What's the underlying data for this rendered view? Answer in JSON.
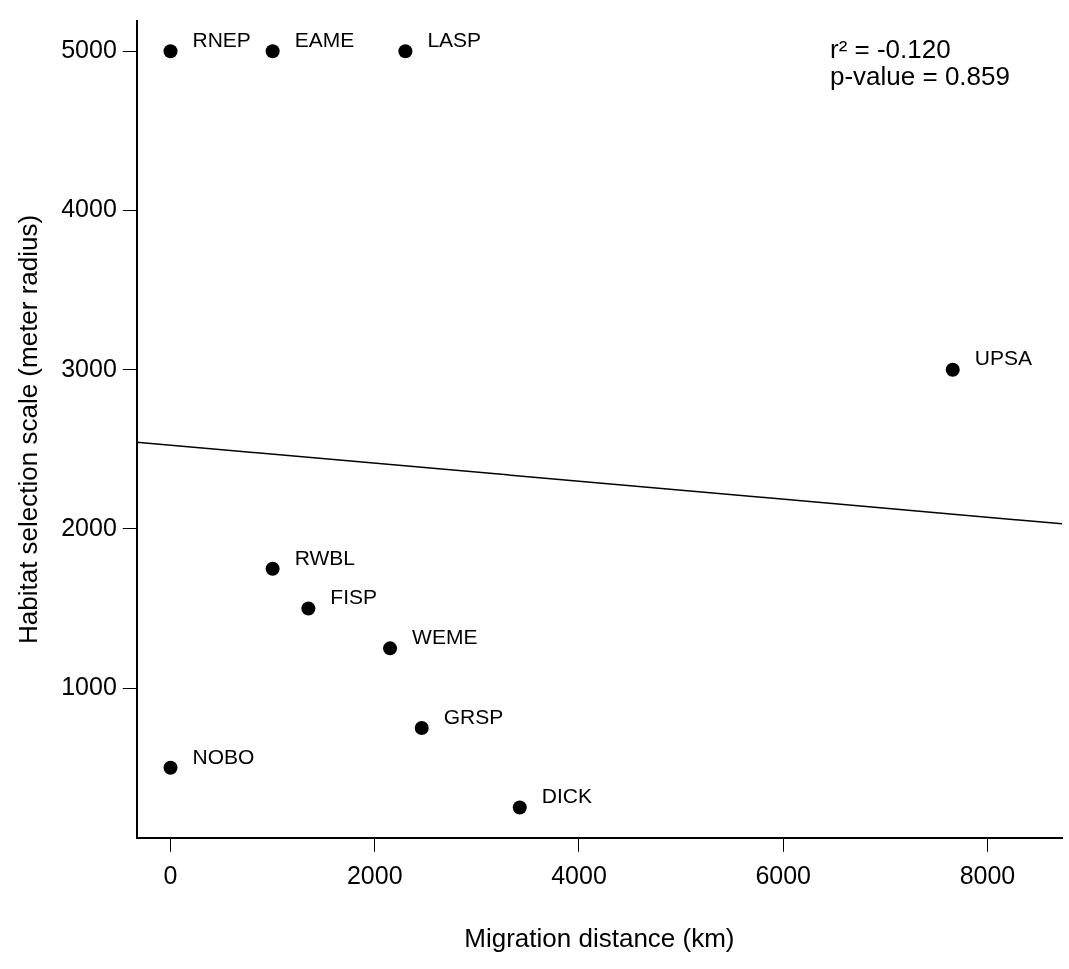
{
  "chart_data": {
    "type": "scatter",
    "xlabel": "Migration distance (km)",
    "ylabel": "Habitat selection scale (meter radius)",
    "xlim": [
      -330,
      8730
    ],
    "ylim": [
      60,
      5190
    ],
    "xticks": [
      0,
      2000,
      4000,
      6000,
      8000
    ],
    "yticks": [
      1000,
      2000,
      3000,
      4000,
      5000
    ],
    "grid": false,
    "legend": false,
    "marker": "circle",
    "series": [
      {
        "color": "#000000",
        "x": [
          0,
          1000,
          2300,
          7660,
          1000,
          1350,
          2150,
          2460,
          0,
          3420
        ],
        "values": [
          5000,
          5000,
          5000,
          3000,
          1750,
          1500,
          1250,
          750,
          500,
          250
        ]
      },
      {
        "type": "line",
        "color": "#000000",
        "marker": "none",
        "x": [
          -330,
          8730
        ],
        "values": [
          2545,
          2032
        ]
      }
    ],
    "annotations": [
      "r² = -0.120",
      "p-value = 0.859",
      {
        "text": "RNEP",
        "x": 0,
        "y": 5000
      },
      {
        "text": "EAME",
        "x": 1000,
        "y": 5000
      },
      {
        "text": "LASP",
        "x": 2300,
        "y": 5000
      },
      {
        "text": "UPSA",
        "x": 7660,
        "y": 3000
      },
      {
        "text": "RWBL",
        "x": 1000,
        "y": 1750
      },
      {
        "text": "FISP",
        "x": 1350,
        "y": 1500
      },
      {
        "text": "WEME",
        "x": 2150,
        "y": 1250
      },
      {
        "text": "GRSP",
        "x": 2460,
        "y": 750
      },
      {
        "text": "NOBO",
        "x": 0,
        "y": 500
      },
      {
        "text": "DICK",
        "x": 3420,
        "y": 250
      }
    ]
  }
}
